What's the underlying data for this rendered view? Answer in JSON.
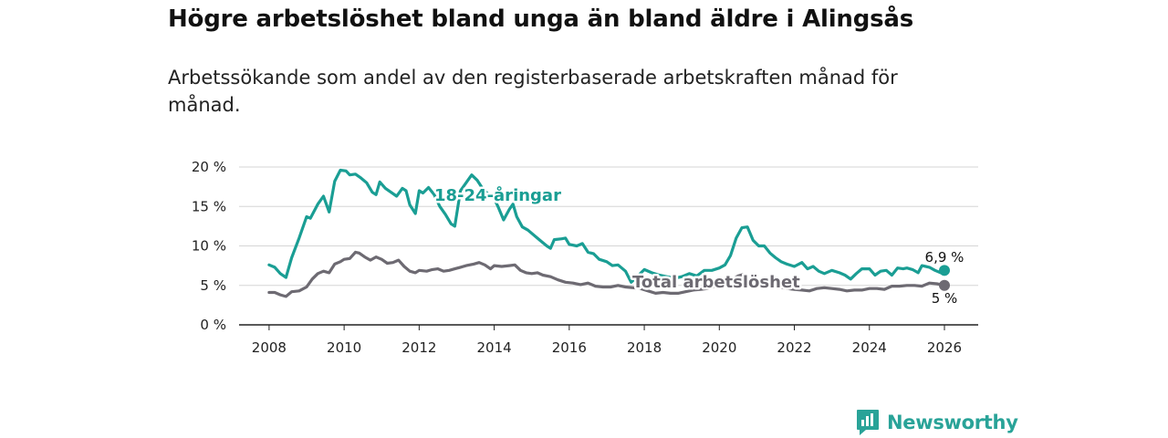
{
  "title": "Högre arbetslöshet bland unga än bland äldre i Alingsås",
  "subtitle": "Arbetssökande som andel av den registerbaserade arbetskraften månad för månad.",
  "brand": {
    "name": "Newsworthy",
    "icon": "newsworthy-logo-icon",
    "color": "#29a398"
  },
  "chart_data": {
    "type": "line",
    "title": "Högre arbetslöshet bland unga än bland äldre i Alingsås",
    "xlabel": "",
    "ylabel": "",
    "xlim": [
      2007.2,
      2026.9
    ],
    "ylim": [
      0,
      20
    ],
    "grid": true,
    "x_ticks": [
      2008,
      2010,
      2012,
      2014,
      2016,
      2018,
      2020,
      2022,
      2024,
      2026
    ],
    "x_tick_labels": [
      "2008",
      "2010",
      "2012",
      "2014",
      "2016",
      "2018",
      "2020",
      "2022",
      "2024",
      "2026"
    ],
    "y_ticks": [
      0,
      5,
      10,
      15,
      20
    ],
    "y_tick_labels": [
      "0 %",
      "5 %",
      "10 %",
      "15 %",
      "20 %"
    ],
    "series": [
      {
        "name": "18-24-åringar",
        "color": "#1a9e94",
        "end_label": "6,9 %",
        "points": [
          [
            2008.0,
            7.6
          ],
          [
            2008.15,
            7.3
          ],
          [
            2008.3,
            6.5
          ],
          [
            2008.45,
            6.0
          ],
          [
            2008.6,
            8.5
          ],
          [
            2008.8,
            11.0
          ],
          [
            2009.0,
            13.7
          ],
          [
            2009.1,
            13.5
          ],
          [
            2009.3,
            15.3
          ],
          [
            2009.45,
            16.3
          ],
          [
            2009.6,
            14.3
          ],
          [
            2009.75,
            18.2
          ],
          [
            2009.9,
            19.6
          ],
          [
            2010.05,
            19.5
          ],
          [
            2010.15,
            19.0
          ],
          [
            2010.3,
            19.1
          ],
          [
            2010.45,
            18.6
          ],
          [
            2010.6,
            18.0
          ],
          [
            2010.75,
            16.8
          ],
          [
            2010.85,
            16.5
          ],
          [
            2010.95,
            18.1
          ],
          [
            2011.1,
            17.3
          ],
          [
            2011.25,
            16.8
          ],
          [
            2011.4,
            16.3
          ],
          [
            2011.55,
            17.3
          ],
          [
            2011.65,
            17.0
          ],
          [
            2011.75,
            15.2
          ],
          [
            2011.9,
            14.1
          ],
          [
            2012.0,
            17.0
          ],
          [
            2012.1,
            16.7
          ],
          [
            2012.25,
            17.4
          ],
          [
            2012.4,
            16.5
          ],
          [
            2012.55,
            15.0
          ],
          [
            2012.7,
            14.0
          ],
          [
            2012.85,
            12.8
          ],
          [
            2012.95,
            12.5
          ],
          [
            2013.1,
            17.0
          ],
          [
            2013.25,
            18.0
          ],
          [
            2013.4,
            19.0
          ],
          [
            2013.55,
            18.3
          ],
          [
            2013.7,
            17.2
          ],
          [
            2013.85,
            16.5
          ],
          [
            2014.0,
            16.0
          ],
          [
            2014.1,
            15.0
          ],
          [
            2014.25,
            13.3
          ],
          [
            2014.4,
            14.6
          ],
          [
            2014.5,
            15.3
          ],
          [
            2014.6,
            13.7
          ],
          [
            2014.75,
            12.4
          ],
          [
            2014.9,
            12.0
          ],
          [
            2015.0,
            11.6
          ],
          [
            2015.2,
            10.8
          ],
          [
            2015.4,
            10.0
          ],
          [
            2015.5,
            9.7
          ],
          [
            2015.6,
            10.8
          ],
          [
            2015.8,
            10.9
          ],
          [
            2015.9,
            11.0
          ],
          [
            2016.0,
            10.2
          ],
          [
            2016.2,
            10.0
          ],
          [
            2016.35,
            10.3
          ],
          [
            2016.5,
            9.2
          ],
          [
            2016.65,
            9.0
          ],
          [
            2016.8,
            8.3
          ],
          [
            2017.0,
            8.0
          ],
          [
            2017.15,
            7.5
          ],
          [
            2017.3,
            7.6
          ],
          [
            2017.5,
            6.8
          ],
          [
            2017.65,
            5.4
          ],
          [
            2017.85,
            6.3
          ],
          [
            2018.0,
            7.0
          ],
          [
            2018.2,
            6.6
          ],
          [
            2018.4,
            6.3
          ],
          [
            2018.6,
            6.1
          ],
          [
            2018.8,
            5.9
          ],
          [
            2019.0,
            6.1
          ],
          [
            2019.2,
            6.5
          ],
          [
            2019.4,
            6.2
          ],
          [
            2019.6,
            6.9
          ],
          [
            2019.8,
            6.9
          ],
          [
            2020.0,
            7.2
          ],
          [
            2020.15,
            7.6
          ],
          [
            2020.3,
            8.8
          ],
          [
            2020.45,
            11.0
          ],
          [
            2020.6,
            12.3
          ],
          [
            2020.75,
            12.4
          ],
          [
            2020.9,
            10.7
          ],
          [
            2021.05,
            10.0
          ],
          [
            2021.2,
            10.0
          ],
          [
            2021.35,
            9.1
          ],
          [
            2021.5,
            8.5
          ],
          [
            2021.65,
            8.0
          ],
          [
            2021.8,
            7.7
          ],
          [
            2022.0,
            7.4
          ],
          [
            2022.2,
            7.9
          ],
          [
            2022.35,
            7.1
          ],
          [
            2022.5,
            7.4
          ],
          [
            2022.65,
            6.8
          ],
          [
            2022.8,
            6.5
          ],
          [
            2023.0,
            6.9
          ],
          [
            2023.2,
            6.6
          ],
          [
            2023.35,
            6.3
          ],
          [
            2023.5,
            5.8
          ],
          [
            2023.65,
            6.5
          ],
          [
            2023.8,
            7.1
          ],
          [
            2024.0,
            7.1
          ],
          [
            2024.15,
            6.3
          ],
          [
            2024.3,
            6.8
          ],
          [
            2024.45,
            6.9
          ],
          [
            2024.6,
            6.3
          ],
          [
            2024.75,
            7.2
          ],
          [
            2024.9,
            7.1
          ],
          [
            2025.0,
            7.2
          ],
          [
            2025.15,
            7.0
          ],
          [
            2025.3,
            6.6
          ],
          [
            2025.4,
            7.5
          ],
          [
            2025.6,
            7.3
          ],
          [
            2025.75,
            6.9
          ],
          [
            2025.9,
            6.6
          ],
          [
            2026.0,
            6.9
          ]
        ]
      },
      {
        "name": "Total arbetslöshet",
        "color": "#6d6a72",
        "end_label": "5 %",
        "points": [
          [
            2008.0,
            4.1
          ],
          [
            2008.15,
            4.1
          ],
          [
            2008.3,
            3.8
          ],
          [
            2008.45,
            3.6
          ],
          [
            2008.6,
            4.2
          ],
          [
            2008.8,
            4.3
          ],
          [
            2009.0,
            4.8
          ],
          [
            2009.15,
            5.8
          ],
          [
            2009.3,
            6.5
          ],
          [
            2009.45,
            6.8
          ],
          [
            2009.6,
            6.6
          ],
          [
            2009.75,
            7.7
          ],
          [
            2009.9,
            8.0
          ],
          [
            2010.0,
            8.3
          ],
          [
            2010.15,
            8.4
          ],
          [
            2010.3,
            9.2
          ],
          [
            2010.4,
            9.1
          ],
          [
            2010.55,
            8.6
          ],
          [
            2010.7,
            8.2
          ],
          [
            2010.85,
            8.6
          ],
          [
            2011.0,
            8.3
          ],
          [
            2011.15,
            7.8
          ],
          [
            2011.3,
            7.9
          ],
          [
            2011.45,
            8.2
          ],
          [
            2011.6,
            7.4
          ],
          [
            2011.75,
            6.8
          ],
          [
            2011.9,
            6.6
          ],
          [
            2012.0,
            6.9
          ],
          [
            2012.2,
            6.8
          ],
          [
            2012.35,
            7.0
          ],
          [
            2012.5,
            7.1
          ],
          [
            2012.65,
            6.8
          ],
          [
            2012.8,
            6.9
          ],
          [
            2012.95,
            7.1
          ],
          [
            2013.1,
            7.3
          ],
          [
            2013.25,
            7.5
          ],
          [
            2013.45,
            7.7
          ],
          [
            2013.6,
            7.9
          ],
          [
            2013.75,
            7.6
          ],
          [
            2013.9,
            7.1
          ],
          [
            2014.0,
            7.5
          ],
          [
            2014.2,
            7.4
          ],
          [
            2014.4,
            7.5
          ],
          [
            2014.55,
            7.6
          ],
          [
            2014.7,
            6.9
          ],
          [
            2014.85,
            6.6
          ],
          [
            2015.0,
            6.5
          ],
          [
            2015.15,
            6.6
          ],
          [
            2015.3,
            6.3
          ],
          [
            2015.5,
            6.1
          ],
          [
            2015.7,
            5.7
          ],
          [
            2015.9,
            5.4
          ],
          [
            2016.1,
            5.3
          ],
          [
            2016.3,
            5.1
          ],
          [
            2016.5,
            5.3
          ],
          [
            2016.7,
            4.9
          ],
          [
            2016.9,
            4.8
          ],
          [
            2017.1,
            4.8
          ],
          [
            2017.3,
            5.0
          ],
          [
            2017.5,
            4.8
          ],
          [
            2017.7,
            4.7
          ],
          [
            2017.9,
            4.6
          ],
          [
            2018.1,
            4.3
          ],
          [
            2018.3,
            4.0
          ],
          [
            2018.5,
            4.1
          ],
          [
            2018.7,
            4.0
          ],
          [
            2018.9,
            4.0
          ],
          [
            2019.1,
            4.2
          ],
          [
            2019.3,
            4.4
          ],
          [
            2019.5,
            4.5
          ],
          [
            2019.7,
            4.6
          ],
          [
            2019.9,
            4.9
          ],
          [
            2020.1,
            5.1
          ],
          [
            2020.3,
            5.6
          ],
          [
            2020.5,
            6.2
          ],
          [
            2020.65,
            6.4
          ],
          [
            2020.8,
            5.9
          ],
          [
            2021.0,
            5.5
          ],
          [
            2021.2,
            5.1
          ],
          [
            2021.4,
            4.9
          ],
          [
            2021.6,
            4.8
          ],
          [
            2021.8,
            4.6
          ],
          [
            2022.0,
            4.5
          ],
          [
            2022.2,
            4.4
          ],
          [
            2022.4,
            4.3
          ],
          [
            2022.6,
            4.6
          ],
          [
            2022.8,
            4.7
          ],
          [
            2023.0,
            4.6
          ],
          [
            2023.2,
            4.5
          ],
          [
            2023.4,
            4.3
          ],
          [
            2023.6,
            4.4
          ],
          [
            2023.8,
            4.4
          ],
          [
            2024.0,
            4.6
          ],
          [
            2024.2,
            4.6
          ],
          [
            2024.4,
            4.5
          ],
          [
            2024.6,
            4.9
          ],
          [
            2024.8,
            4.9
          ],
          [
            2025.0,
            5.0
          ],
          [
            2025.2,
            5.0
          ],
          [
            2025.4,
            4.9
          ],
          [
            2025.6,
            5.3
          ],
          [
            2025.8,
            5.2
          ],
          [
            2026.0,
            5.0
          ]
        ]
      }
    ]
  }
}
